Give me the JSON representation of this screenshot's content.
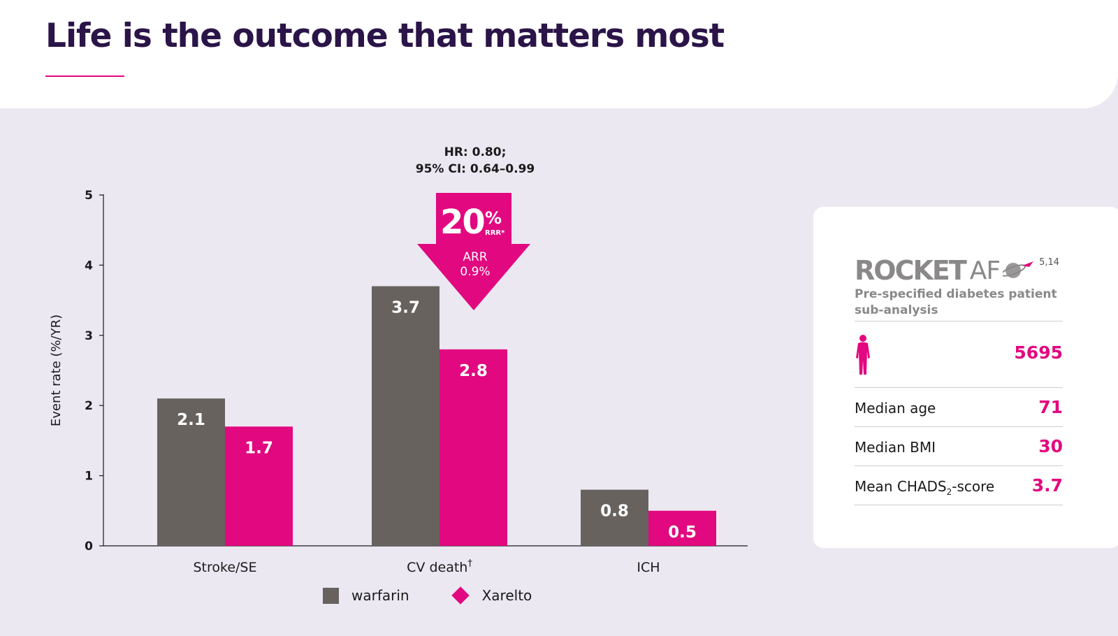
{
  "title": "Life is the outcome that matters most",
  "colors": {
    "warfarin": "#67625e",
    "xarelto": "#e2087f",
    "title": "#2a1448",
    "background": "#ebe8f2"
  },
  "chart_data": {
    "type": "bar",
    "ylabel": "Event rate (%/YR)",
    "xlabel": "",
    "ylim": [
      0,
      5
    ],
    "yticks": [
      "0",
      "1",
      "2",
      "3",
      "4",
      "5"
    ],
    "categories": [
      "Stroke/SE",
      "CV death",
      "ICH"
    ],
    "category_marks": [
      "",
      "†",
      ""
    ],
    "series": [
      {
        "name": "warfarin",
        "values": [
          2.1,
          3.7,
          0.8
        ],
        "labels": [
          "2.1",
          "3.7",
          "0.8"
        ]
      },
      {
        "name": "Xarelto",
        "values": [
          1.7,
          2.8,
          0.5
        ],
        "labels": [
          "1.7",
          "2.8",
          "0.5"
        ]
      }
    ],
    "legend_position": "bottom-center"
  },
  "annotation": {
    "hr_line1": "HR: 0.80;",
    "hr_line2": "95% CI: 0.64–0.99",
    "rrr_number": "20",
    "rrr_percent": "%",
    "rrr_label": "RRR*",
    "arr_label": "ARR",
    "arr_value": "0.9%"
  },
  "study": {
    "logo_text": "ROCKET",
    "logo_suffix": "AF",
    "refs": "5,14",
    "subtitle": "Pre-specified diabetes patient sub-analysis",
    "patients": "5695",
    "stats": [
      {
        "label": "Median age",
        "value": "71"
      },
      {
        "label": "Median BMI",
        "value": "30"
      },
      {
        "label_pre": "Mean CHADS",
        "label_sub": "2",
        "label_post": "-score",
        "value": "3.7"
      }
    ]
  }
}
